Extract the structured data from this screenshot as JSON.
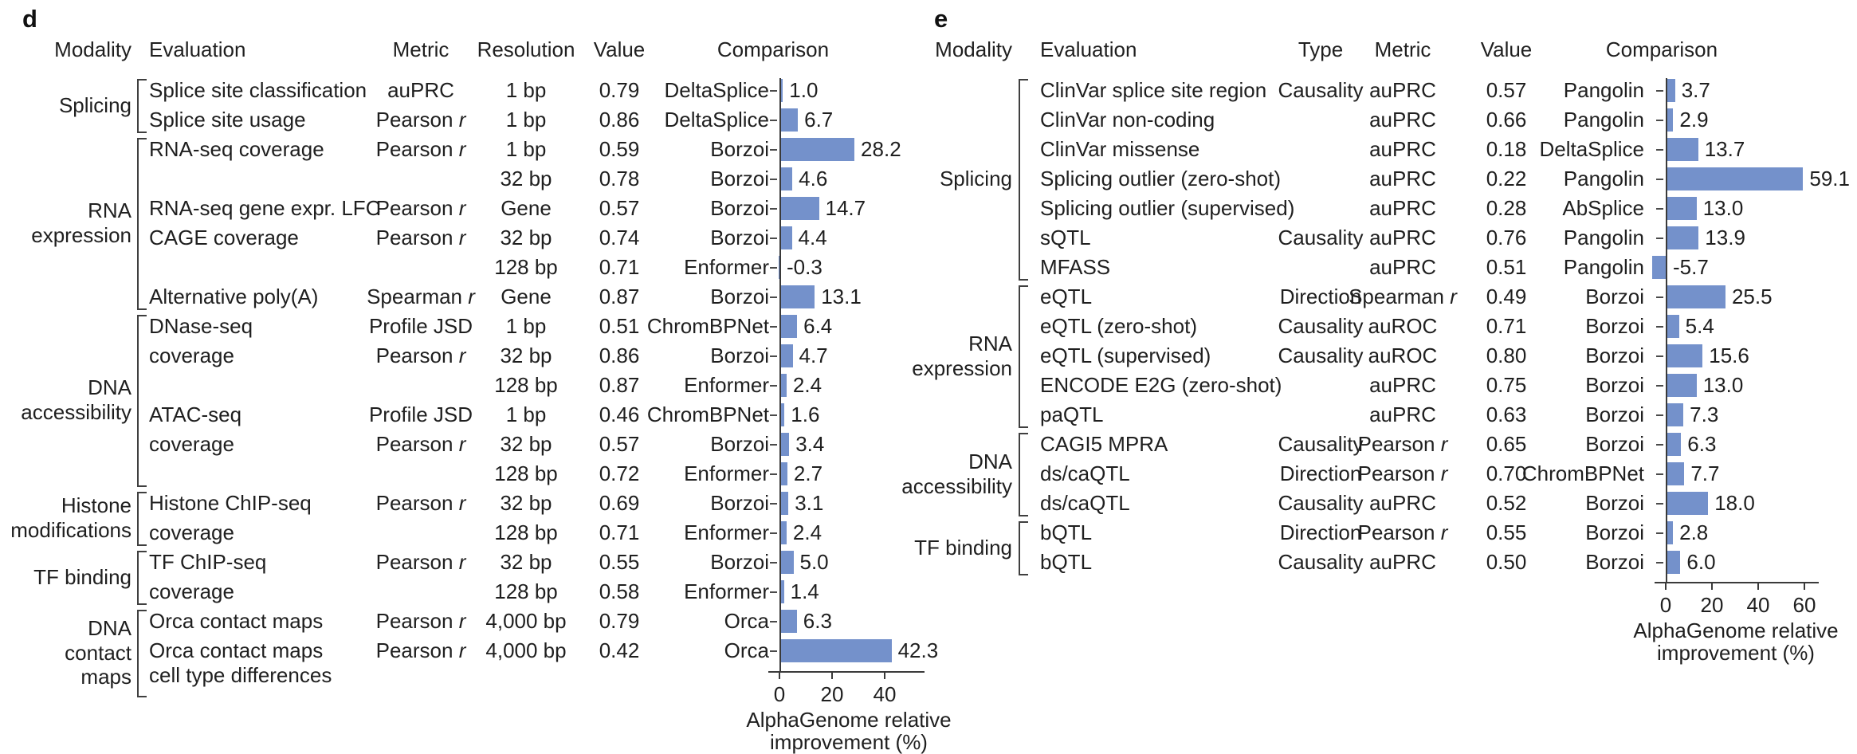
{
  "bar_color": "#7491cb",
  "text_color": "#1f1f1f",
  "axis_color": "#3a3a3a",
  "chart_data": [
    {
      "type": "bar",
      "orientation": "horizontal",
      "panel_label": "d",
      "xlabel": "AlphaGenome relative improvement (%)",
      "xlabel_lines": "AlphaGenome relative\nimprovement (%)",
      "xticks": [
        0,
        20,
        40
      ],
      "xlim": [
        -2,
        52
      ],
      "headers": {
        "modality": "Modality",
        "evaluation": "Evaluation",
        "metric": "Metric",
        "resolution": "Resolution",
        "value": "Value",
        "comparison": "Comparison"
      },
      "field_keys": [
        "metric",
        "resolution",
        "value"
      ],
      "groups": [
        {
          "label": "Splicing",
          "start": 0,
          "count": 2
        },
        {
          "label": "RNA\nexpression",
          "start": 2,
          "count": 6
        },
        {
          "label": "DNA\naccessibility",
          "start": 8,
          "count": 6
        },
        {
          "label": "Histone\nmodifications",
          "start": 14,
          "count": 2
        },
        {
          "label": "TF binding",
          "start": 16,
          "count": 2
        },
        {
          "label": "DNA\ncontact\nmaps",
          "start": 18,
          "count": 2,
          "extend": 42
        }
      ],
      "rows": [
        {
          "evaluation": "Splice site classification",
          "metric": "auPRC",
          "resolution": "1 bp",
          "value": "0.79",
          "comparison": "DeltaSplice",
          "improvement": "1.0"
        },
        {
          "evaluation": "Splice site usage",
          "metric": "Pearson r",
          "resolution": "1 bp",
          "value": "0.86",
          "comparison": "DeltaSplice",
          "improvement": "6.7"
        },
        {
          "evaluation": "RNA-seq coverage",
          "metric": "Pearson r",
          "resolution": "1 bp",
          "value": "0.59",
          "comparison": "Borzoi",
          "improvement": "28.2"
        },
        {
          "evaluation": "",
          "metric": "",
          "resolution": "32 bp",
          "value": "0.78",
          "comparison": "Borzoi",
          "improvement": "4.6"
        },
        {
          "evaluation": "RNA-seq gene expr. LFC",
          "metric": "Pearson r",
          "resolution": "Gene",
          "value": "0.57",
          "comparison": "Borzoi",
          "improvement": "14.7"
        },
        {
          "evaluation": "CAGE coverage",
          "metric": "Pearson r",
          "resolution": "32 bp",
          "value": "0.74",
          "comparison": "Borzoi",
          "improvement": "4.4"
        },
        {
          "evaluation": "",
          "metric": "",
          "resolution": "128 bp",
          "value": "0.71",
          "comparison": "Enformer",
          "improvement": "-0.3"
        },
        {
          "evaluation": "Alternative poly(A)",
          "metric": "Spearman r",
          "resolution": "Gene",
          "value": "0.87",
          "comparison": "Borzoi",
          "improvement": "13.1"
        },
        {
          "evaluation": "DNase-seq",
          "metric": "Profile JSD",
          "resolution": "1 bp",
          "value": "0.51",
          "comparison": "ChromBPNet",
          "improvement": "6.4"
        },
        {
          "evaluation": "coverage",
          "metric": "Pearson r",
          "resolution": "32 bp",
          "value": "0.86",
          "comparison": "Borzoi",
          "improvement": "4.7"
        },
        {
          "evaluation": "",
          "metric": "",
          "resolution": "128 bp",
          "value": "0.87",
          "comparison": "Enformer",
          "improvement": "2.4"
        },
        {
          "evaluation": "ATAC-seq",
          "metric": "Profile JSD",
          "resolution": "1 bp",
          "value": "0.46",
          "comparison": "ChromBPNet",
          "improvement": "1.6"
        },
        {
          "evaluation": "coverage",
          "metric": "Pearson r",
          "resolution": "32 bp",
          "value": "0.57",
          "comparison": "Borzoi",
          "improvement": "3.4"
        },
        {
          "evaluation": "",
          "metric": "",
          "resolution": "128 bp",
          "value": "0.72",
          "comparison": "Enformer",
          "improvement": "2.7"
        },
        {
          "evaluation": "Histone ChIP-seq",
          "metric": "Pearson r",
          "resolution": "32 bp",
          "value": "0.69",
          "comparison": "Borzoi",
          "improvement": "3.1"
        },
        {
          "evaluation": "coverage",
          "metric": "",
          "resolution": "128 bp",
          "value": "0.71",
          "comparison": "Enformer",
          "improvement": "2.4"
        },
        {
          "evaluation": "TF ChIP-seq",
          "metric": "Pearson r",
          "resolution": "32 bp",
          "value": "0.55",
          "comparison": "Borzoi",
          "improvement": "5.0"
        },
        {
          "evaluation": "coverage",
          "metric": "",
          "resolution": "128 bp",
          "value": "0.58",
          "comparison": "Enformer",
          "improvement": "1.4"
        },
        {
          "evaluation": "Orca contact maps",
          "metric": "Pearson r",
          "resolution": "4,000 bp",
          "value": "0.79",
          "comparison": "Orca",
          "improvement": "6.3"
        },
        {
          "evaluation": "Orca contact maps\ncell type differences",
          "metric": "Pearson r",
          "resolution": "4,000 bp",
          "value": "0.42",
          "comparison": "Orca",
          "improvement": "42.3"
        }
      ]
    },
    {
      "type": "bar",
      "orientation": "horizontal",
      "panel_label": "e",
      "xlabel": "AlphaGenome relative improvement (%)",
      "xlabel_lines": "AlphaGenome relative\nimprovement (%)",
      "xticks": [
        0,
        20,
        40,
        60
      ],
      "xlim": [
        -8,
        65
      ],
      "headers": {
        "modality": "Modality",
        "evaluation": "Evaluation",
        "type": "Type",
        "metric": "Metric",
        "value": "Value",
        "comparison": "Comparison"
      },
      "field_keys": [
        "type",
        "metric",
        "value"
      ],
      "groups": [
        {
          "label": "Splicing",
          "start": 0,
          "count": 7
        },
        {
          "label": "RNA\nexpression",
          "start": 7,
          "count": 5
        },
        {
          "label": "DNA\naccessibility",
          "start": 12,
          "count": 3
        },
        {
          "label": "TF binding",
          "start": 15,
          "count": 2
        }
      ],
      "rows": [
        {
          "evaluation": "ClinVar splice site region",
          "type": "Causality",
          "metric": "auPRC",
          "value": "0.57",
          "comparison": "Pangolin",
          "improvement": "3.7"
        },
        {
          "evaluation": "ClinVar non-coding",
          "type": "",
          "metric": "auPRC",
          "value": "0.66",
          "comparison": "Pangolin",
          "improvement": "2.9"
        },
        {
          "evaluation": "ClinVar missense",
          "type": "",
          "metric": "auPRC",
          "value": "0.18",
          "comparison": "DeltaSplice",
          "improvement": "13.7"
        },
        {
          "evaluation": "Splicing outlier (zero-shot)",
          "type": "",
          "metric": "auPRC",
          "value": "0.22",
          "comparison": "Pangolin",
          "improvement": "59.1"
        },
        {
          "evaluation": "Splicing outlier (supervised)",
          "type": "",
          "metric": "auPRC",
          "value": "0.28",
          "comparison": "AbSplice",
          "improvement": "13.0"
        },
        {
          "evaluation": "sQTL",
          "type": "Causality",
          "metric": "auPRC",
          "value": "0.76",
          "comparison": "Pangolin",
          "improvement": "13.9"
        },
        {
          "evaluation": "MFASS",
          "type": "",
          "metric": "auPRC",
          "value": "0.51",
          "comparison": "Pangolin",
          "improvement": "-5.7"
        },
        {
          "evaluation": "eQTL",
          "type": "Direction",
          "metric": "Spearman r",
          "value": "0.49",
          "comparison": "Borzoi",
          "improvement": "25.5"
        },
        {
          "evaluation": "eQTL (zero-shot)",
          "type": "Causality",
          "metric": "auROC",
          "value": "0.71",
          "comparison": "Borzoi",
          "improvement": "5.4"
        },
        {
          "evaluation": "eQTL (supervised)",
          "type": "Causality",
          "metric": "auROC",
          "value": "0.80",
          "comparison": "Borzoi",
          "improvement": "15.6"
        },
        {
          "evaluation": "ENCODE E2G (zero-shot)",
          "type": "",
          "metric": "auPRC",
          "value": "0.75",
          "comparison": "Borzoi",
          "improvement": "13.0"
        },
        {
          "evaluation": "paQTL",
          "type": "",
          "metric": "auPRC",
          "value": "0.63",
          "comparison": "Borzoi",
          "improvement": "7.3"
        },
        {
          "evaluation": "CAGI5 MPRA",
          "type": "Causality",
          "metric": "Pearson r",
          "value": "0.65",
          "comparison": "Borzoi",
          "improvement": "6.3"
        },
        {
          "evaluation": "ds/caQTL",
          "type": "Direction",
          "metric": "Pearson r",
          "value": "0.70",
          "comparison": "ChromBPNet",
          "improvement": "7.7"
        },
        {
          "evaluation": "ds/caQTL",
          "type": "Causality",
          "metric": "auPRC",
          "value": "0.52",
          "comparison": "Borzoi",
          "improvement": "18.0"
        },
        {
          "evaluation": "bQTL",
          "type": "Direction",
          "metric": "Pearson r",
          "value": "0.55",
          "comparison": "Borzoi",
          "improvement": "2.8"
        },
        {
          "evaluation": "bQTL",
          "type": "Causality",
          "metric": "auPRC",
          "value": "0.50",
          "comparison": "Borzoi",
          "improvement": "6.0"
        }
      ]
    }
  ]
}
